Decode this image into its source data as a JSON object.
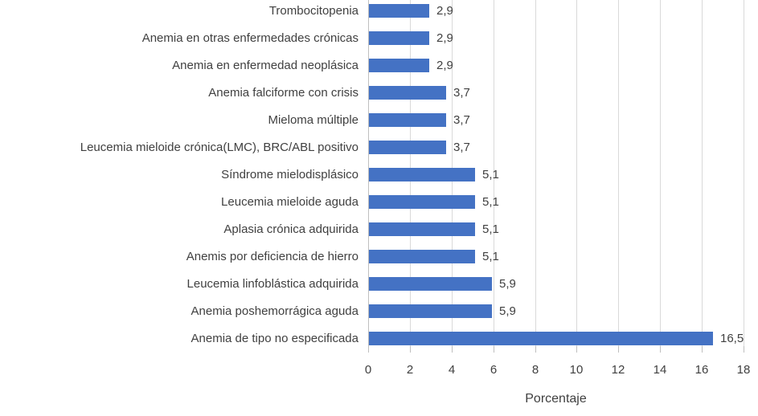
{
  "chart_data": {
    "type": "bar",
    "orientation": "horizontal",
    "title": "",
    "categories": [
      "Trombocitopenia",
      "Anemia en otras enfermedades crónicas",
      "Anemia en enfermedad neoplásica",
      "Anemia falciforme con crisis",
      "Mieloma múltiple",
      "Leucemia mieloide crónica(LMC), BRC/ABL positivo",
      "Síndrome mielodisplásico",
      "Leucemia mieloide aguda",
      "Aplasia crónica adquirida",
      "Anemis por deficiencia de hierro",
      "Leucemia linfoblástica adquirida",
      "Anemia poshemorrágica aguda",
      "Anemia de tipo no especificada"
    ],
    "values": [
      2.9,
      2.9,
      2.9,
      3.7,
      3.7,
      3.7,
      5.1,
      5.1,
      5.1,
      5.1,
      5.9,
      5.9,
      16.5
    ],
    "value_labels": [
      "2,9",
      "2,9",
      "2,9",
      "3,7",
      "3,7",
      "3,7",
      "5,1",
      "5,1",
      "5,1",
      "5,1",
      "5,9",
      "5,9",
      "16,5"
    ],
    "xlabel": "Porcentaje",
    "ylabel": "",
    "xlim": [
      0,
      18
    ],
    "xticks": [
      0,
      2,
      4,
      6,
      8,
      10,
      12,
      14,
      16,
      18
    ],
    "grid": true,
    "legend": "none",
    "colors": {
      "bar": "#4472C4",
      "gridline": "#D9D9D9",
      "axis_line": "#BFBFBF",
      "text": "#404040"
    }
  }
}
